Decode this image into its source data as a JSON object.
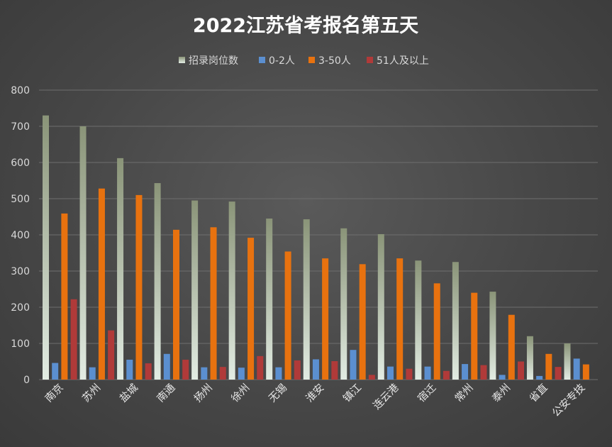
{
  "chart_data": {
    "type": "bar",
    "title": "2022江苏省考报名第五天",
    "categories": [
      "南京",
      "苏州",
      "盐城",
      "南通",
      "扬州",
      "徐州",
      "无锡",
      "淮安",
      "镇江",
      "连云港",
      "宿迁",
      "常州",
      "泰州",
      "省直",
      "公安专技"
    ],
    "series": [
      {
        "name": "招录岗位数",
        "color": "#b9c3b0",
        "values": [
          730,
          700,
          612,
          543,
          495,
          492,
          445,
          443,
          418,
          402,
          329,
          325,
          243,
          120,
          100
        ]
      },
      {
        "name": "0-2人",
        "color": "#5b8fd0",
        "values": [
          46,
          34,
          55,
          71,
          34,
          33,
          34,
          56,
          82,
          36,
          36,
          43,
          13,
          10,
          58
        ]
      },
      {
        "name": "3-50人",
        "color": "#e8720f",
        "values": [
          459,
          528,
          510,
          414,
          421,
          392,
          354,
          335,
          319,
          335,
          266,
          240,
          179,
          71,
          42
        ]
      },
      {
        "name": "51人及以上",
        "color": "#b03a39",
        "values": [
          222,
          136,
          45,
          55,
          35,
          65,
          53,
          51,
          13,
          30,
          24,
          40,
          50,
          35,
          0
        ]
      }
    ],
    "ylim": [
      0,
      800
    ],
    "yticks": [
      0,
      100,
      200,
      300,
      400,
      500,
      600,
      700,
      800
    ],
    "grid": true,
    "legend_position": "top"
  }
}
